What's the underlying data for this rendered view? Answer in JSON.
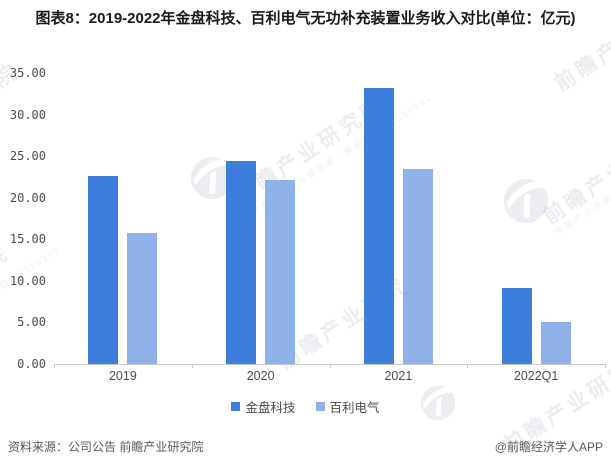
{
  "title": "图表8：2019-2022年金盘科技、百利电气无功补充装置业务收入对比(单位：亿元)",
  "chart_data": {
    "type": "bar",
    "title": "2019-2022年金盘科技、百利电气无功补充装置业务收入对比",
    "unit": "亿元",
    "categories": [
      "2019",
      "2020",
      "2021",
      "2022Q1"
    ],
    "series": [
      {
        "name": "金盘科技",
        "color": "#3d7edd",
        "values": [
          22.6,
          24.4,
          33.2,
          9.2
        ]
      },
      {
        "name": "百利电气",
        "color": "#8db1e8",
        "values": [
          15.8,
          22.1,
          23.5,
          5.1
        ]
      }
    ],
    "ylim": [
      0,
      35
    ],
    "y_tick_labels": [
      "35.00",
      "30.00",
      "25.00",
      "20.00",
      "15.00",
      "10.00",
      "5.00",
      "0.00"
    ],
    "grid": false,
    "legend_position": "bottom",
    "axis_color": "#c9c9c9"
  },
  "watermark": {
    "text": "前瞻产业研究院",
    "subtext": "中国产业咨询领导者（股票代码：839599）"
  },
  "footer": {
    "source": "资料来源：公司公告 前瞻产业研究院",
    "credit": "@前瞻经济学人APP"
  }
}
